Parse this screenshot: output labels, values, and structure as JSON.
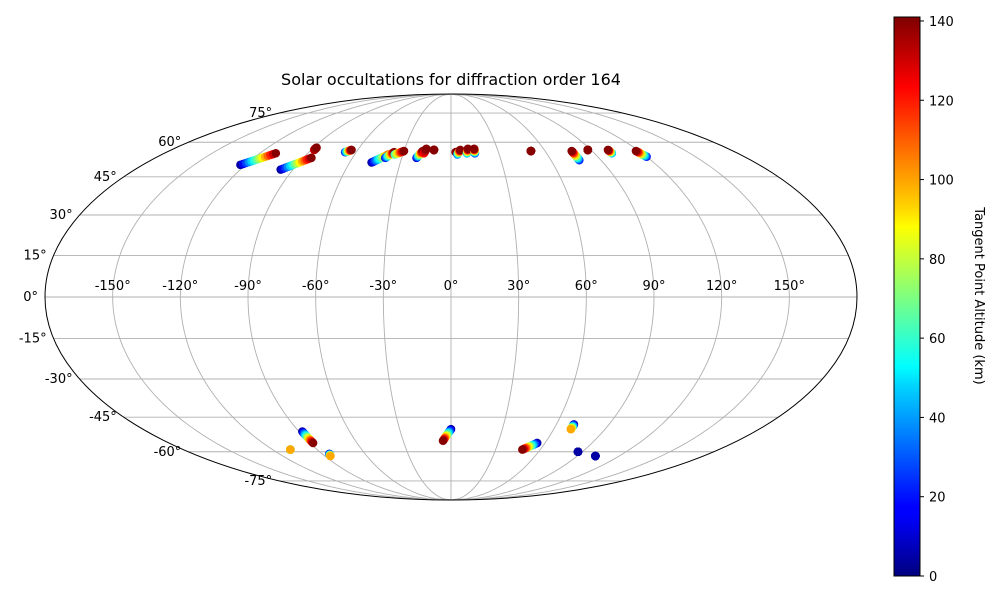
{
  "chart_data": {
    "type": "scatter",
    "projection": "mollweide",
    "title": "Solar occultations for diffraction order 164",
    "colorbar": {
      "label": "Tangent Point Altitude (km)",
      "min": 0,
      "max": 141,
      "colormap": "jet",
      "ticks": [
        "0",
        "20",
        "40",
        "60",
        "80",
        "100",
        "120",
        "140"
      ],
      "tick_values": [
        0,
        20,
        40,
        60,
        80,
        100,
        120,
        140
      ]
    },
    "lon_ticks": [
      "-150°",
      "-120°",
      "-90°",
      "-60°",
      "-30°",
      "0°",
      "30°",
      "60°",
      "90°",
      "120°",
      "150°"
    ],
    "lon_tick_values": [
      -150,
      -120,
      -90,
      -60,
      -30,
      0,
      30,
      60,
      90,
      120,
      150
    ],
    "lat_ticks": [
      "75°",
      "60°",
      "45°",
      "30°",
      "15°",
      "0°",
      "-15°",
      "-30°",
      "-45°",
      "-60°",
      "-75°"
    ],
    "lat_tick_values": [
      75,
      60,
      45,
      30,
      15,
      0,
      -15,
      -30,
      -45,
      -60,
      -75
    ],
    "grid": true,
    "tracks": [
      {
        "lon0": -123,
        "lat0": 50,
        "lon1": -110,
        "lat1": 55,
        "alt0": 5,
        "alt1": 140
      },
      {
        "lon0": -97,
        "lat0": 48,
        "lon1": -85,
        "lat1": 53,
        "alt0": 5,
        "alt1": 140
      },
      {
        "lon0": -88,
        "lat0": 56.5,
        "lon1": -88,
        "lat1": 57.5,
        "alt0": 130,
        "alt1": 140
      },
      {
        "lon0": -67,
        "lat0": 55.5,
        "lon1": -64,
        "lat1": 56.5,
        "alt0": 20,
        "alt1": 140
      },
      {
        "lon0": -47,
        "lat0": 51,
        "lon1": -39,
        "lat1": 54.5,
        "alt0": 5,
        "alt1": 110
      },
      {
        "lon0": -40,
        "lat0": 53,
        "lon1": -36,
        "lat1": 55.5,
        "alt0": 15,
        "alt1": 140
      },
      {
        "lon0": -35,
        "lat0": 54.5,
        "lon1": -30,
        "lat1": 56,
        "alt0": 60,
        "alt1": 140
      },
      {
        "lon0": -21,
        "lat0": 53,
        "lon1": -18,
        "lat1": 56,
        "alt0": 10,
        "alt1": 140
      },
      {
        "lon0": -17,
        "lat0": 55,
        "lon1": -16,
        "lat1": 57,
        "alt0": 120,
        "alt1": 140
      },
      {
        "lon0": -11,
        "lat0": 56.5,
        "lon1": -11,
        "lat1": 56.5,
        "alt0": 140,
        "alt1": 140
      },
      {
        "lon0": 3,
        "lat0": 55.5,
        "lon1": 4,
        "lat1": 55.5,
        "alt0": 140,
        "alt1": 140
      },
      {
        "lon0": 4,
        "lat0": 54.5,
        "lon1": 6,
        "lat1": 56.5,
        "alt0": 30,
        "alt1": 140
      },
      {
        "lon0": 10,
        "lat0": 55,
        "lon1": 11,
        "lat1": 57,
        "alt0": 40,
        "alt1": 140
      },
      {
        "lon0": 15,
        "lat0": 55,
        "lon1": 15,
        "lat1": 57,
        "alt0": 20,
        "alt1": 140
      },
      {
        "lon0": 51,
        "lat0": 56,
        "lon1": 51,
        "lat1": 56,
        "alt0": 140,
        "alt1": 140
      },
      {
        "lon0": 77,
        "lat0": 52,
        "lon1": 77,
        "lat1": 56,
        "alt0": 20,
        "alt1": 140
      },
      {
        "lon0": 88,
        "lat0": 56.5,
        "lon1": 88,
        "lat1": 56.5,
        "alt0": 140,
        "alt1": 140
      },
      {
        "lon0": 101,
        "lat0": 55,
        "lon1": 101,
        "lat1": 56.5,
        "alt0": 40,
        "alt1": 140
      },
      {
        "lon0": 120,
        "lat0": 53.5,
        "lon1": 118,
        "lat1": 56,
        "alt0": 20,
        "alt1": 140
      },
      {
        "lon0": 0,
        "lat0": -50,
        "lon1": -5,
        "lat1": -55,
        "alt0": 5,
        "alt1": 140
      },
      {
        "lon0": 55,
        "lat0": -56,
        "lon1": 48,
        "lat1": -59,
        "alt0": 5,
        "alt1": 140
      },
      {
        "lon0": -88,
        "lat0": -51,
        "lon1": -88,
        "lat1": -56,
        "alt0": 5,
        "alt1": 140
      },
      {
        "lon0": -108,
        "lat0": -59,
        "lon1": -108,
        "lat1": -59,
        "alt0": 5,
        "alt1": 100
      },
      {
        "lon0": -85,
        "lat0": -61,
        "lon1": -86,
        "lat1": -62,
        "alt0": 5,
        "alt1": 100
      },
      {
        "lon0": 70,
        "lat0": -48,
        "lon1": 70,
        "lat1": -50,
        "alt0": 5,
        "alt1": 100
      },
      {
        "lon0": 87,
        "lat0": -60,
        "lon1": 87,
        "lat1": -60,
        "alt0": 5,
        "alt1": 5
      },
      {
        "lon0": 103,
        "lat0": -62,
        "lon1": 103,
        "lat1": -62,
        "alt0": 5,
        "alt1": 5
      }
    ]
  }
}
